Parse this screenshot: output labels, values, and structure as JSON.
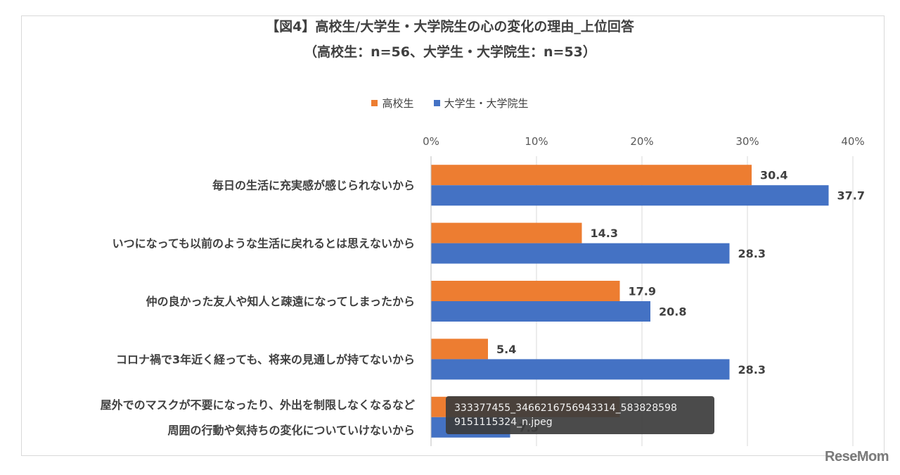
{
  "chart_data": {
    "type": "bar",
    "orientation": "horizontal",
    "title_line1": "【図4】高校生/大学生・大学院生の心の変化の理由_上位回答",
    "title_line2": "（高校生：n=56、大学生・大学院生：n=53）",
    "xlim": [
      0,
      40
    ],
    "xticks": [
      "0%",
      "10%",
      "20%",
      "30%",
      "40%"
    ],
    "xtick_values": [
      0,
      10,
      20,
      30,
      40
    ],
    "grid": true,
    "legend_position": "top-center",
    "categories": [
      [
        "毎日の生活に充実感が感じられないから"
      ],
      [
        "いつになっても以前のような生活に戻れるとは思えないから"
      ],
      [
        "仲の良かった友人や知人と疎遠になってしまったから"
      ],
      [
        "コロナ禍で3年近く経っても、将来の見通しが持てないから"
      ],
      [
        "屋外でのマスクが不要になったり、外出を制限しなくなるなど",
        "周囲の行動や気持ちの変化についていけないから"
      ]
    ],
    "series": [
      {
        "name": "高校生",
        "color": "#ed7d31",
        "values": [
          30.4,
          14.3,
          17.9,
          5.4,
          17.9
        ]
      },
      {
        "name": "大学生・大学院生",
        "color": "#4472c4",
        "values": [
          37.7,
          28.3,
          20.8,
          28.3,
          7.5
        ]
      }
    ]
  },
  "tooltip": {
    "line1": "333377455_3466216756943314_583828598",
    "line2": "9151115324_n.jpeg"
  },
  "brand": "ReseMom"
}
